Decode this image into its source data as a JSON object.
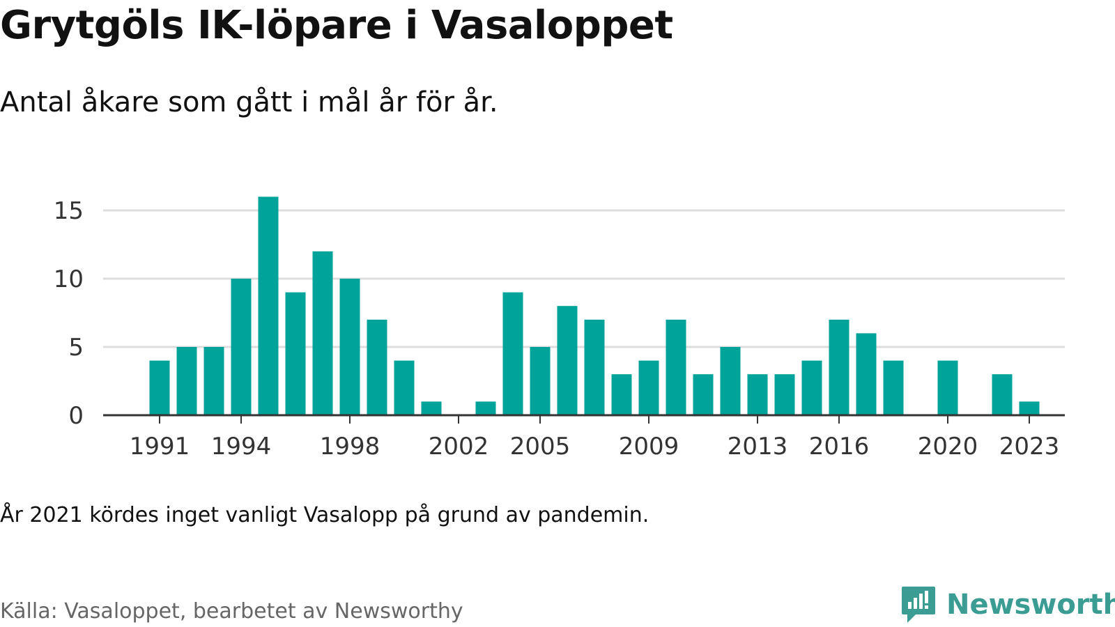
{
  "title": "Grytgöls IK-löpare i Vasaloppet",
  "subtitle": "Antal åkare som gått i mål år för år.",
  "note": "År 2021 kördes inget vanligt Vasalopp på grund av pandemin.",
  "source": "Källa: Vasaloppet, bearbetet av Newsworthy",
  "logo": {
    "text": "Newsworthy",
    "color": "#3a9c93",
    "icon": "newsworthy-logo-icon"
  },
  "colors": {
    "bar": "#00a39a",
    "grid": "#dddddd",
    "axis": "#333333",
    "text": "#333333"
  },
  "chart_data": {
    "type": "bar",
    "x": [
      1991,
      1992,
      1993,
      1994,
      1995,
      1996,
      1997,
      1998,
      1999,
      2000,
      2001,
      2002,
      2003,
      2004,
      2005,
      2006,
      2007,
      2008,
      2009,
      2010,
      2011,
      2012,
      2013,
      2014,
      2015,
      2016,
      2017,
      2018,
      2019,
      2020,
      2021,
      2022,
      2023
    ],
    "values": [
      4,
      5,
      5,
      10,
      16,
      9,
      12,
      10,
      7,
      4,
      1,
      0,
      1,
      9,
      5,
      8,
      7,
      3,
      4,
      7,
      3,
      5,
      3,
      3,
      4,
      7,
      6,
      4,
      0,
      4,
      0,
      3,
      1
    ],
    "xticks": [
      1991,
      1994,
      1998,
      2002,
      2005,
      2009,
      2013,
      2016,
      2020,
      2023
    ],
    "yticks": [
      0,
      5,
      10,
      15
    ],
    "ylim": [
      0,
      16
    ],
    "xlabel": "",
    "ylabel": "",
    "grid": true,
    "legend": "none"
  }
}
